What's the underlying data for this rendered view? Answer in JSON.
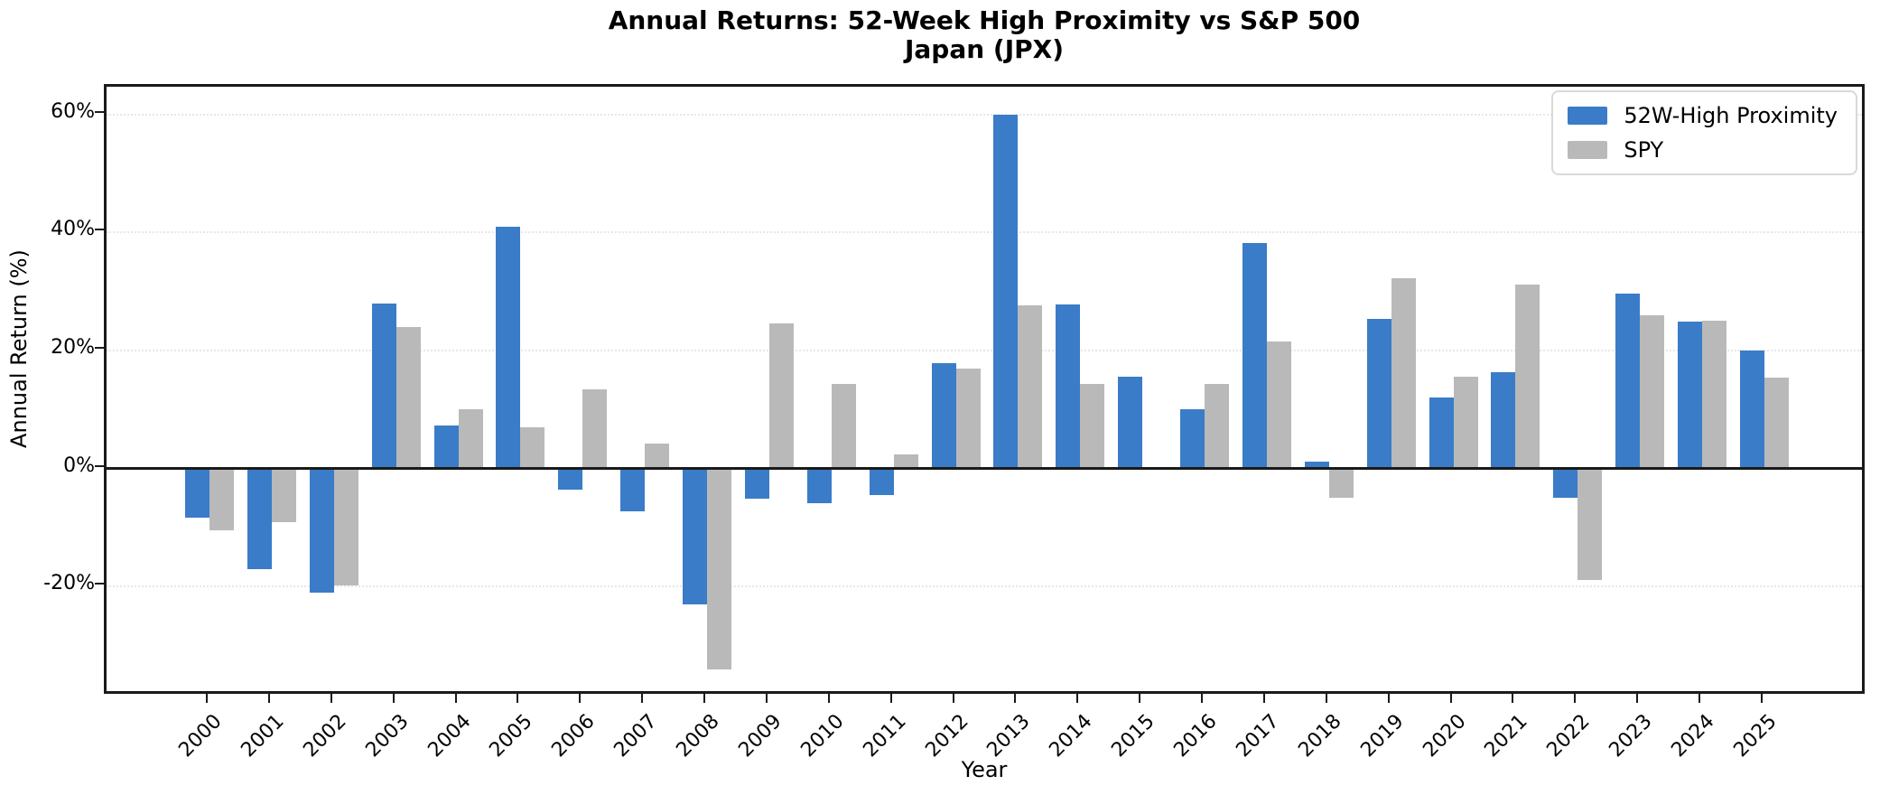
{
  "title": {
    "line1": "Annual Returns: 52-Week High Proximity vs S&P 500",
    "line2": "Japan (JPX)"
  },
  "legend": {
    "items": [
      {
        "label": "52W-High Proximity",
        "color": "#3a7cc7"
      },
      {
        "label": "SPY",
        "color": "#b9b9b9"
      }
    ]
  },
  "chart_data": {
    "type": "bar",
    "title": "Annual Returns: 52-Week High Proximity vs S&P 500",
    "subtitle": "Japan (JPX)",
    "xlabel": "Year",
    "ylabel": "Annual Return (%)",
    "categories": [
      "2000",
      "2001",
      "2002",
      "2003",
      "2004",
      "2005",
      "2006",
      "2007",
      "2008",
      "2009",
      "2010",
      "2011",
      "2012",
      "2013",
      "2014",
      "2015",
      "2016",
      "2017",
      "2018",
      "2019",
      "2020",
      "2021",
      "2022",
      "2023",
      "2024",
      "2025"
    ],
    "series": [
      {
        "name": "52W-High Proximity",
        "color": "#3a7cc7",
        "values": [
          -8.3,
          -17.0,
          -21.0,
          28.0,
          7.3,
          41.0,
          -3.5,
          -7.2,
          -23.0,
          -5.1,
          -5.9,
          -4.4,
          17.8,
          60.0,
          27.8,
          15.5,
          10.1,
          38.3,
          1.2,
          25.3,
          12.0,
          16.3,
          -5.0,
          29.6,
          24.9,
          20.0
        ]
      },
      {
        "name": "SPY",
        "color": "#b9b9b9",
        "values": [
          -10.5,
          -9.0,
          -19.8,
          24.0,
          10.0,
          7.0,
          13.5,
          4.3,
          -34.0,
          24.6,
          14.3,
          2.4,
          17.0,
          27.7,
          14.3,
          0.0,
          14.3,
          21.6,
          -5.0,
          32.2,
          15.5,
          31.2,
          -18.8,
          26.0,
          25.1,
          15.4
        ]
      }
    ],
    "y_ticks": [
      60,
      40,
      20,
      0,
      -20
    ],
    "y_tick_labels": [
      "60%",
      "40%",
      "20%",
      "0%",
      "-20%"
    ],
    "ylim": [
      -38.6,
      64.7
    ],
    "grid": "horizontal-dotted",
    "zero_line": true,
    "legend_position": "upper-right"
  }
}
